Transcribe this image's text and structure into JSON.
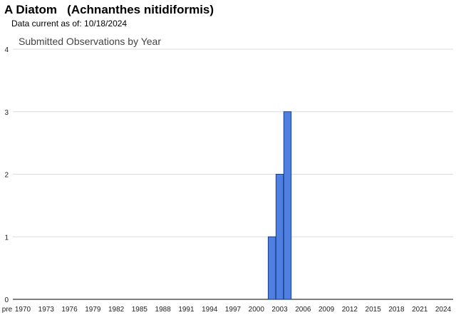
{
  "header": {
    "title": "A Diatom   (Achnanthes nitidiformis)",
    "data_current": "Data current as of: 10/18/2024"
  },
  "chart_data": {
    "type": "bar",
    "title": "Submitted Observations by Year",
    "xlabel": "",
    "ylabel": "",
    "ylim": [
      0,
      4
    ],
    "yticks": [
      "0",
      "1",
      "2",
      "3",
      "4"
    ],
    "grid": true,
    "legend": "none",
    "bar_color": "#4f80e1",
    "bar_edge": "#1c3f8a",
    "categories": [
      "pre",
      "1970",
      "1971",
      "1972",
      "1973",
      "1974",
      "1975",
      "1976",
      "1977",
      "1978",
      "1979",
      "1980",
      "1981",
      "1982",
      "1983",
      "1984",
      "1985",
      "1986",
      "1987",
      "1988",
      "1989",
      "1990",
      "1991",
      "1992",
      "1993",
      "1994",
      "1995",
      "1996",
      "1997",
      "1998",
      "1999",
      "2000",
      "2001",
      "2002",
      "2003",
      "2004",
      "2005",
      "2006",
      "2007",
      "2008",
      "2009",
      "2010",
      "2011",
      "2012",
      "2013",
      "2014",
      "2015",
      "2016",
      "2017",
      "2018",
      "2019",
      "2020",
      "2021",
      "2022",
      "2023",
      "2024"
    ],
    "values": [
      0,
      0,
      0,
      0,
      0,
      0,
      0,
      0,
      0,
      0,
      0,
      0,
      0,
      0,
      0,
      0,
      0,
      0,
      0,
      0,
      0,
      0,
      0,
      0,
      0,
      0,
      0,
      0,
      0,
      0,
      0,
      0,
      0,
      1,
      2,
      3,
      0,
      0,
      0,
      0,
      0,
      0,
      0,
      0,
      0,
      0,
      0,
      0,
      0,
      0,
      0,
      0,
      0,
      0,
      0,
      0
    ],
    "xtick_labels": [
      "pre",
      "1970",
      "1973",
      "1976",
      "1979",
      "1982",
      "1985",
      "1988",
      "1991",
      "1994",
      "1997",
      "2000",
      "2003",
      "2006",
      "2009",
      "2012",
      "2015",
      "2018",
      "2021",
      "2024"
    ]
  }
}
